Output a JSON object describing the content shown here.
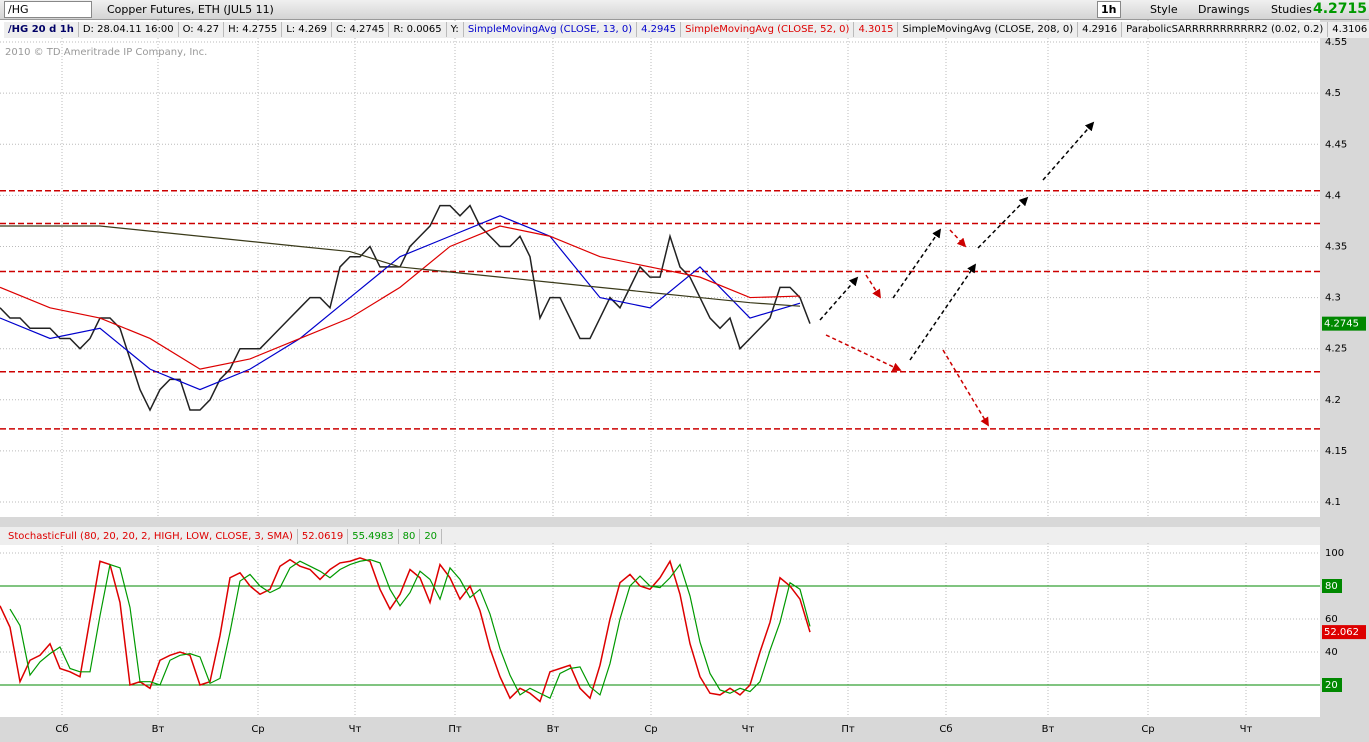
{
  "toolbar": {
    "symbol": "/HG",
    "description": "Copper Futures, ETH (JUL5 11)",
    "interval": "1h",
    "style": "Style",
    "drawings": "Drawings",
    "studies": "Studies",
    "last": "4.2715"
  },
  "status": {
    "period": "/HG 20 d 1h",
    "date": "D: 28.04.11 16:00",
    "open": "O: 4.27",
    "high": "H: 4.2755",
    "low": "L: 4.269",
    "close": "C: 4.2745",
    "range": "R: 0.0065",
    "y": "Y:",
    "sar_name": "ParabolicSARRRRRRRRRRR2 (0.02, 0.2)",
    "sar_value": "4.3106",
    "copyright": "2010 © TD Ameritrade IP Company, Inc."
  },
  "chart_data": [
    {
      "type": "line",
      "last_label": "4.2745",
      "ylim": [
        4.0873,
        4.5696
      ],
      "xlim": [
        0,
        132
      ],
      "yticks": [
        4.55,
        4.5,
        4.45,
        4.4,
        4.35,
        4.3,
        4.25,
        4.2,
        4.15,
        4.1
      ],
      "grid": true,
      "levels": [
        4.4045,
        4.3725,
        4.3255,
        4.2275,
        4.1715
      ],
      "level_color": "#cc0000",
      "series": [
        {
          "color": "#222222",
          "x": [
            0,
            1,
            2,
            3,
            4,
            5,
            6,
            7,
            8,
            9,
            10,
            11,
            12,
            13,
            14,
            15,
            16,
            17,
            18,
            19,
            20,
            21,
            22,
            23,
            24,
            25,
            26,
            27,
            28,
            29,
            30,
            31,
            32,
            33,
            34,
            35,
            36,
            37,
            38,
            39,
            40,
            41,
            42,
            43,
            44,
            45,
            46,
            47,
            48,
            49,
            50,
            51,
            52,
            53,
            54,
            55,
            56,
            57,
            58,
            59,
            60,
            61,
            62,
            63,
            64,
            65,
            66,
            67,
            68,
            69,
            70,
            71,
            72,
            73,
            74,
            75,
            76,
            77,
            78,
            79,
            80,
            81
          ],
          "values": [
            4.29,
            4.28,
            4.28,
            4.27,
            4.27,
            4.27,
            4.26,
            4.26,
            4.25,
            4.26,
            4.28,
            4.28,
            4.27,
            4.24,
            4.21,
            4.19,
            4.21,
            4.22,
            4.22,
            4.19,
            4.19,
            4.2,
            4.22,
            4.23,
            4.25,
            4.25,
            4.25,
            4.26,
            4.27,
            4.28,
            4.29,
            4.3,
            4.3,
            4.29,
            4.33,
            4.34,
            4.34,
            4.35,
            4.33,
            4.33,
            4.33,
            4.35,
            4.36,
            4.37,
            4.39,
            4.39,
            4.38,
            4.39,
            4.37,
            4.36,
            4.35,
            4.35,
            4.36,
            4.34,
            4.28,
            4.3,
            4.3,
            4.28,
            4.26,
            4.26,
            4.28,
            4.3,
            4.29,
            4.31,
            4.33,
            4.32,
            4.32,
            4.36,
            4.33,
            4.32,
            4.3,
            4.28,
            4.27,
            4.28,
            4.25,
            4.26,
            4.27,
            4.28,
            4.31,
            4.31,
            4.3,
            4.2745
          ]
        },
        {
          "name": "SimpleMovingAvg (CLOSE, 13, 0)",
          "readout": "4.2945",
          "color": "#0000cc",
          "x": [
            0,
            5,
            10,
            15,
            20,
            25,
            30,
            35,
            40,
            45,
            50,
            55,
            60,
            65,
            70,
            75,
            80
          ],
          "values": [
            4.28,
            4.26,
            4.27,
            4.23,
            4.21,
            4.23,
            4.26,
            4.3,
            4.34,
            4.36,
            4.38,
            4.36,
            4.3,
            4.29,
            4.33,
            4.28,
            4.2945
          ]
        },
        {
          "name": "SimpleMovingAvg (CLOSE, 52, 0)",
          "readout": "4.3015",
          "color": "#dd0000",
          "x": [
            0,
            5,
            10,
            15,
            20,
            25,
            30,
            35,
            40,
            45,
            50,
            55,
            60,
            65,
            70,
            75,
            80
          ],
          "values": [
            4.31,
            4.29,
            4.28,
            4.26,
            4.23,
            4.24,
            4.26,
            4.28,
            4.31,
            4.35,
            4.37,
            4.36,
            4.34,
            4.33,
            4.32,
            4.3,
            4.3015
          ]
        },
        {
          "name": "SimpleMovingAvg (CLOSE, 208, 0)",
          "readout": "4.2916",
          "color": "#3a3a1a",
          "x": [
            0,
            5,
            10,
            15,
            20,
            25,
            30,
            35,
            40,
            45,
            50,
            55,
            60,
            65,
            70,
            75,
            80
          ],
          "values": [
            4.37,
            4.37,
            4.37,
            4.365,
            4.36,
            4.355,
            4.35,
            4.345,
            4.33,
            4.325,
            4.32,
            4.315,
            4.31,
            4.305,
            4.3,
            4.295,
            4.2916
          ]
        }
      ]
    },
    {
      "type": "line",
      "title": "StochasticFull (80, 20, 20, 2, HIGH, LOW, CLOSE, 3, SMA)",
      "last_label": "52.062",
      "ylim": [
        1.82,
        104.85
      ],
      "xlim": [
        0,
        132
      ],
      "yticks": [
        100,
        80,
        60,
        40,
        20
      ],
      "hlines": [
        80,
        20
      ],
      "hline_color": "#008800",
      "xticks": [
        {
          "value": 6.2,
          "label": "Сб"
        },
        {
          "value": 15.8,
          "label": "Вт"
        },
        {
          "value": 25.8,
          "label": "Ср"
        },
        {
          "value": 35.5,
          "label": "Чт"
        },
        {
          "value": 45.5,
          "label": "Пт"
        },
        {
          "value": 55.3,
          "label": "Вт"
        },
        {
          "value": 65.1,
          "label": "Ср"
        },
        {
          "value": 74.8,
          "label": "Чт"
        },
        {
          "value": 84.8,
          "label": "Пт"
        },
        {
          "value": 94.6,
          "label": "Сб"
        },
        {
          "value": 104.8,
          "label": "Вт"
        },
        {
          "value": 114.8,
          "label": "Ср"
        },
        {
          "value": 124.6,
          "label": "Чт"
        }
      ],
      "series": [
        {
          "readout": "52.0619",
          "color": "#dd0000",
          "x": [
            0,
            1,
            2,
            3,
            4,
            5,
            6,
            7,
            8,
            9,
            10,
            11,
            12,
            13,
            14,
            15,
            16,
            17,
            18,
            19,
            20,
            21,
            22,
            23,
            24,
            25,
            26,
            27,
            28,
            29,
            30,
            31,
            32,
            33,
            34,
            35,
            36,
            37,
            38,
            39,
            40,
            41,
            42,
            43,
            44,
            45,
            46,
            47,
            48,
            49,
            50,
            51,
            52,
            53,
            54,
            55,
            56,
            57,
            58,
            59,
            60,
            61,
            62,
            63,
            64,
            65,
            66,
            67,
            68,
            69,
            70,
            71,
            72,
            73,
            74,
            75,
            76,
            77,
            78,
            79,
            80,
            81
          ],
          "values": [
            68,
            55,
            22,
            35,
            38,
            45,
            30,
            28,
            25,
            60,
            95,
            93,
            70,
            20,
            22,
            18,
            35,
            38,
            40,
            38,
            20,
            22,
            50,
            85,
            88,
            80,
            75,
            78,
            92,
            96,
            92,
            90,
            84,
            90,
            94,
            95,
            97,
            95,
            78,
            66,
            75,
            90,
            85,
            70,
            93,
            85,
            72,
            80,
            65,
            42,
            25,
            12,
            18,
            15,
            10,
            28,
            30,
            32,
            18,
            12,
            32,
            60,
            82,
            87,
            80,
            78,
            85,
            95,
            75,
            45,
            25,
            15,
            14,
            18,
            14,
            20,
            40,
            58,
            85,
            80,
            72,
            52.0619
          ]
        },
        {
          "readout": "55.4983",
          "color": "#009900",
          "x": [
            1,
            2,
            3,
            4,
            5,
            6,
            7,
            8,
            9,
            10,
            11,
            12,
            13,
            14,
            15,
            16,
            17,
            18,
            19,
            20,
            21,
            22,
            23,
            24,
            25,
            26,
            27,
            28,
            29,
            30,
            31,
            32,
            33,
            34,
            35,
            36,
            37,
            38,
            39,
            40,
            41,
            42,
            43,
            44,
            45,
            46,
            47,
            48,
            49,
            50,
            51,
            52,
            53,
            54,
            55,
            56,
            57,
            58,
            59,
            60,
            61,
            62,
            63,
            64,
            65,
            66,
            67,
            68,
            69,
            70,
            71,
            72,
            73,
            74,
            75,
            76,
            77,
            78,
            79,
            80,
            81
          ],
          "values": [
            66,
            56,
            26,
            34,
            39,
            43,
            30,
            28,
            28,
            62,
            93,
            91,
            67,
            22,
            22,
            20,
            35,
            38,
            39,
            37,
            21,
            24,
            52,
            83,
            87,
            80,
            76,
            79,
            91,
            95,
            92,
            89,
            85,
            90,
            93,
            95,
            96,
            94,
            78,
            68,
            76,
            89,
            84,
            72,
            91,
            84,
            73,
            78,
            63,
            42,
            26,
            14,
            18,
            15,
            12,
            27,
            30,
            31,
            19,
            14,
            33,
            60,
            80,
            86,
            80,
            79,
            85,
            93,
            74,
            46,
            27,
            17,
            15,
            18,
            16,
            22,
            41,
            58,
            82,
            78,
            55.4983
          ]
        }
      ]
    }
  ]
}
